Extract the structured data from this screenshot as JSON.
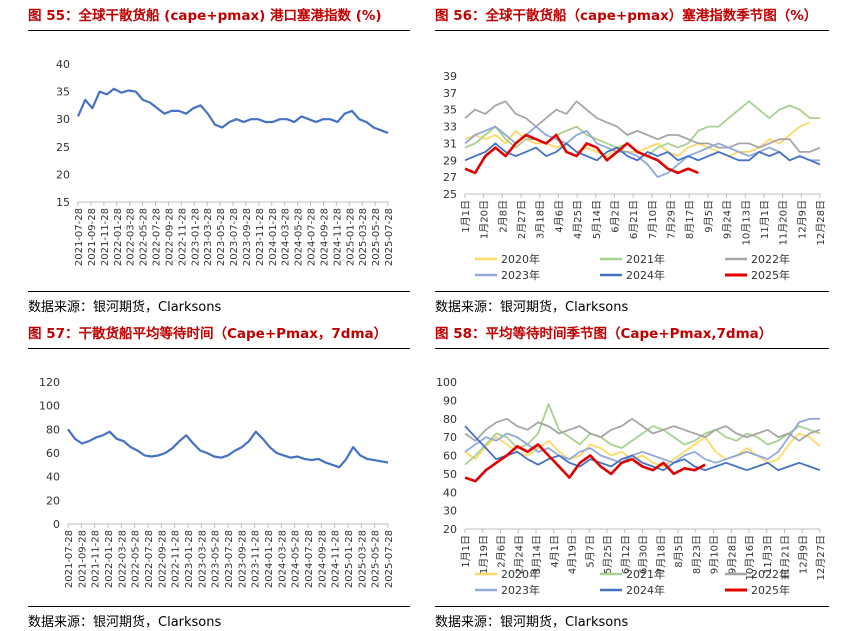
{
  "source_text": "数据来源：银河期货，Clarksons",
  "charts": [
    {
      "title": "图 55：全球干散货船 (cape+pmax) 港口塞港指数 (%)",
      "chart_data": {
        "type": "line",
        "x_ticks": [
          "2021-07-28",
          "2021-09-28",
          "2021-11-28",
          "2022-01-28",
          "2022-03-28",
          "2022-05-28",
          "2022-07-28",
          "2022-09-28",
          "2022-11-28",
          "2023-01-28",
          "2023-03-28",
          "2023-05-28",
          "2023-07-28",
          "2023-09-28",
          "2023-11-28",
          "2024-01-28",
          "2024-03-28",
          "2024-05-28",
          "2024-07-28",
          "2024-09-28",
          "2024-11-28",
          "2025-01-28",
          "2025-03-28",
          "2025-05-28",
          "2025-07-28"
        ],
        "y_ticks": [
          15,
          20,
          25,
          30,
          35,
          40
        ],
        "ylim": [
          15,
          40
        ],
        "series": [
          {
            "color": "#4472c4",
            "values": [
              30.5,
              33.5,
              32,
              35,
              34.5,
              35.5,
              34.8,
              35.2,
              35,
              33.5,
              33,
              32,
              31,
              31.5,
              31.5,
              31,
              32,
              32.5,
              31,
              29,
              28.5,
              29.5,
              30,
              29.5,
              30,
              30,
              29.5,
              29.5,
              30,
              30,
              29.5,
              30.5,
              30,
              29.5,
              30,
              30,
              29.5,
              31,
              31.5,
              30,
              29.5,
              28.5,
              28,
              27.5
            ]
          }
        ]
      }
    },
    {
      "title": "图 56：全球干散货船（cape+pmax）塞港指数季节图（%）",
      "chart_data": {
        "type": "line",
        "x_ticks": [
          "1月1日",
          "1月20日",
          "2月8日",
          "2月27日",
          "3月18日",
          "4月6日",
          "4月25日",
          "5月14日",
          "6月2日",
          "6月21日",
          "7月10日",
          "7月29日",
          "8月17日",
          "9月5日",
          "9月24日",
          "10月13日",
          "11月1日",
          "11月20日",
          "12月9日",
          "12月28日"
        ],
        "y_ticks": [
          25,
          27,
          29,
          31,
          33,
          35,
          37,
          39
        ],
        "ylim": [
          25,
          39
        ],
        "legend": [
          "2020年",
          "2021年",
          "2022年",
          "2023年",
          "2024年",
          "2025年"
        ],
        "series": [
          {
            "name": "2020年",
            "color": "#ffd966",
            "values": [
              31.5,
              32,
              31.5,
              32,
              31,
              32.5,
              31.5,
              31,
              31,
              30.5,
              31,
              30,
              30.5,
              30,
              29.5,
              30.5,
              30,
              30,
              30.5,
              31,
              30,
              29.5,
              30.5,
              31,
              30.5,
              30,
              29.5,
              30,
              30,
              30.5,
              31.5,
              31,
              32,
              33,
              33.5
            ]
          },
          {
            "name": "2021年",
            "color": "#a9d18e",
            "values": [
              30.5,
              31,
              32,
              33,
              31.5,
              30.5,
              31.5,
              31.5,
              31,
              32,
              32.5,
              33,
              32,
              31.5,
              31,
              30.5,
              31,
              30,
              29.5,
              30.5,
              31,
              30.5,
              31,
              32.5,
              33,
              33,
              34,
              35,
              36,
              35,
              34,
              35,
              35.5,
              35,
              34,
              34
            ]
          },
          {
            "name": "2022年",
            "color": "#a6a6a6",
            "values": [
              34,
              35,
              34.5,
              35.5,
              36,
              34.5,
              34,
              33,
              34,
              35,
              34.5,
              36,
              35,
              34,
              33.5,
              33,
              32,
              32.5,
              32,
              31.5,
              32,
              32,
              31.5,
              31,
              31,
              30.5,
              30.5,
              31,
              31,
              30.5,
              31,
              31.5,
              31.5,
              30,
              30,
              30.5
            ]
          },
          {
            "name": "2023年",
            "color": "#8fa9dc",
            "values": [
              31,
              32,
              32.5,
              33,
              32,
              31,
              32,
              33,
              32,
              31.5,
              31,
              32,
              32.5,
              31,
              30.5,
              30,
              30,
              29.5,
              28.5,
              27,
              27.5,
              28.5,
              29.5,
              30,
              30.5,
              31,
              30.5,
              30,
              29.5,
              30,
              30.5,
              30,
              29,
              29.5,
              29,
              29
            ]
          },
          {
            "name": "2024年",
            "color": "#4472c4",
            "values": [
              29,
              29.5,
              30,
              31,
              30,
              29.5,
              30,
              30.5,
              29.5,
              30,
              31,
              30,
              29.5,
              29,
              30,
              30.5,
              29.5,
              29,
              30,
              29.5,
              30,
              29,
              29.5,
              29,
              29.5,
              30,
              29.5,
              29,
              29,
              30,
              29.5,
              30,
              29,
              29.5,
              29,
              28.5
            ]
          },
          {
            "name": "2025年",
            "color": "#e00000",
            "values": [
              28,
              27.5,
              29.5,
              30.5,
              29.5,
              31,
              32,
              31.5,
              31,
              32,
              30,
              29.5,
              31,
              30.5,
              29,
              30,
              31,
              30,
              29.5,
              29,
              28,
              27.5,
              28,
              27.5
            ]
          }
        ]
      }
    },
    {
      "title": "图 57：干散货船平均等待时间（Cape+Pmax，7dma）",
      "chart_data": {
        "type": "line",
        "x_ticks": [
          "2021-07-28",
          "2021-09-28",
          "2021-11-28",
          "2022-01-28",
          "2022-03-28",
          "2022-05-28",
          "2022-07-28",
          "2022-09-28",
          "2022-11-28",
          "2023-01-28",
          "2023-03-28",
          "2023-05-28",
          "2023-07-28",
          "2023-09-28",
          "2023-11-28",
          "2024-01-28",
          "2024-03-28",
          "2024-05-28",
          "2024-07-28",
          "2024-09-28",
          "2024-11-28",
          "2025-01-28",
          "2025-03-28",
          "2025-05-28",
          "2025-07-28"
        ],
        "y_ticks": [
          0,
          20,
          40,
          60,
          80,
          100,
          120
        ],
        "ylim": [
          0,
          120
        ],
        "series": [
          {
            "color": "#4472c4",
            "values": [
              80,
              72,
              68,
              70,
              73,
              75,
              78,
              72,
              70,
              65,
              62,
              58,
              57,
              58,
              60,
              64,
              70,
              75,
              68,
              62,
              60,
              57,
              56,
              58,
              62,
              65,
              70,
              78,
              72,
              65,
              60,
              58,
              56,
              57,
              55,
              54,
              55,
              52,
              50,
              48,
              55,
              65,
              58,
              55,
              54,
              53,
              52
            ]
          }
        ]
      }
    },
    {
      "title": "图 58：平均等待时间季节图（Cape+Pmax,7dma）",
      "chart_data": {
        "type": "line",
        "x_ticks": [
          "1月1日",
          "1月19日",
          "2月6日",
          "2月24日",
          "3月14日",
          "4月1日",
          "4月19日",
          "5月7日",
          "5月25日",
          "6月12日",
          "6月30日",
          "7月18日",
          "8月5日",
          "8月23日",
          "9月10日",
          "9月28日",
          "10月16日",
          "11月3日",
          "11月21日",
          "12月9日",
          "12月27日"
        ],
        "y_ticks": [
          20,
          30,
          40,
          50,
          60,
          70,
          80,
          90,
          100
        ],
        "ylim": [
          20,
          100
        ],
        "legend": [
          "2020年",
          "2021年",
          "2022年",
          "2023年",
          "2024年",
          "2025年"
        ],
        "series": [
          {
            "name": "2020年",
            "color": "#ffd966",
            "values": [
              62,
              58,
              65,
              70,
              66,
              62,
              60,
              64,
              68,
              62,
              58,
              60,
              66,
              64,
              60,
              62,
              58,
              60,
              56,
              54,
              58,
              62,
              66,
              70,
              62,
              58,
              60,
              64,
              60,
              56,
              58,
              66,
              72,
              70,
              65
            ]
          },
          {
            "name": "2021年",
            "color": "#a9d18e",
            "values": [
              55,
              60,
              66,
              72,
              70,
              64,
              66,
              72,
              88,
              74,
              70,
              66,
              72,
              70,
              66,
              64,
              68,
              72,
              76,
              74,
              70,
              66,
              68,
              72,
              74,
              70,
              68,
              72,
              70,
              66,
              68,
              72,
              76,
              74,
              72
            ]
          },
          {
            "name": "2022年",
            "color": "#a6a6a6",
            "values": [
              72,
              68,
              74,
              78,
              80,
              76,
              74,
              78,
              76,
              72,
              74,
              76,
              72,
              70,
              74,
              76,
              80,
              76,
              72,
              74,
              76,
              74,
              72,
              70,
              74,
              76,
              72,
              70,
              72,
              74,
              70,
              72,
              68,
              72,
              74
            ]
          },
          {
            "name": "2023年",
            "color": "#8fa9dc",
            "values": [
              62,
              66,
              70,
              68,
              72,
              70,
              66,
              62,
              64,
              60,
              58,
              62,
              64,
              60,
              58,
              56,
              60,
              62,
              60,
              58,
              56,
              60,
              62,
              58,
              56,
              58,
              60,
              62,
              60,
              58,
              62,
              70,
              78,
              80,
              80
            ]
          },
          {
            "name": "2024年",
            "color": "#4472c4",
            "values": [
              76,
              70,
              64,
              58,
              60,
              62,
              58,
              55,
              58,
              60,
              56,
              54,
              58,
              56,
              54,
              58,
              60,
              56,
              54,
              52,
              56,
              58,
              54,
              52,
              54,
              56,
              54,
              52,
              54,
              56,
              52,
              54,
              56,
              54,
              52
            ]
          },
          {
            "name": "2025年",
            "color": "#e00000",
            "values": [
              48,
              46,
              52,
              56,
              60,
              65,
              62,
              66,
              60,
              54,
              48,
              56,
              60,
              54,
              50,
              56,
              58,
              54,
              52,
              56,
              50,
              53,
              52,
              55
            ]
          }
        ]
      }
    }
  ]
}
